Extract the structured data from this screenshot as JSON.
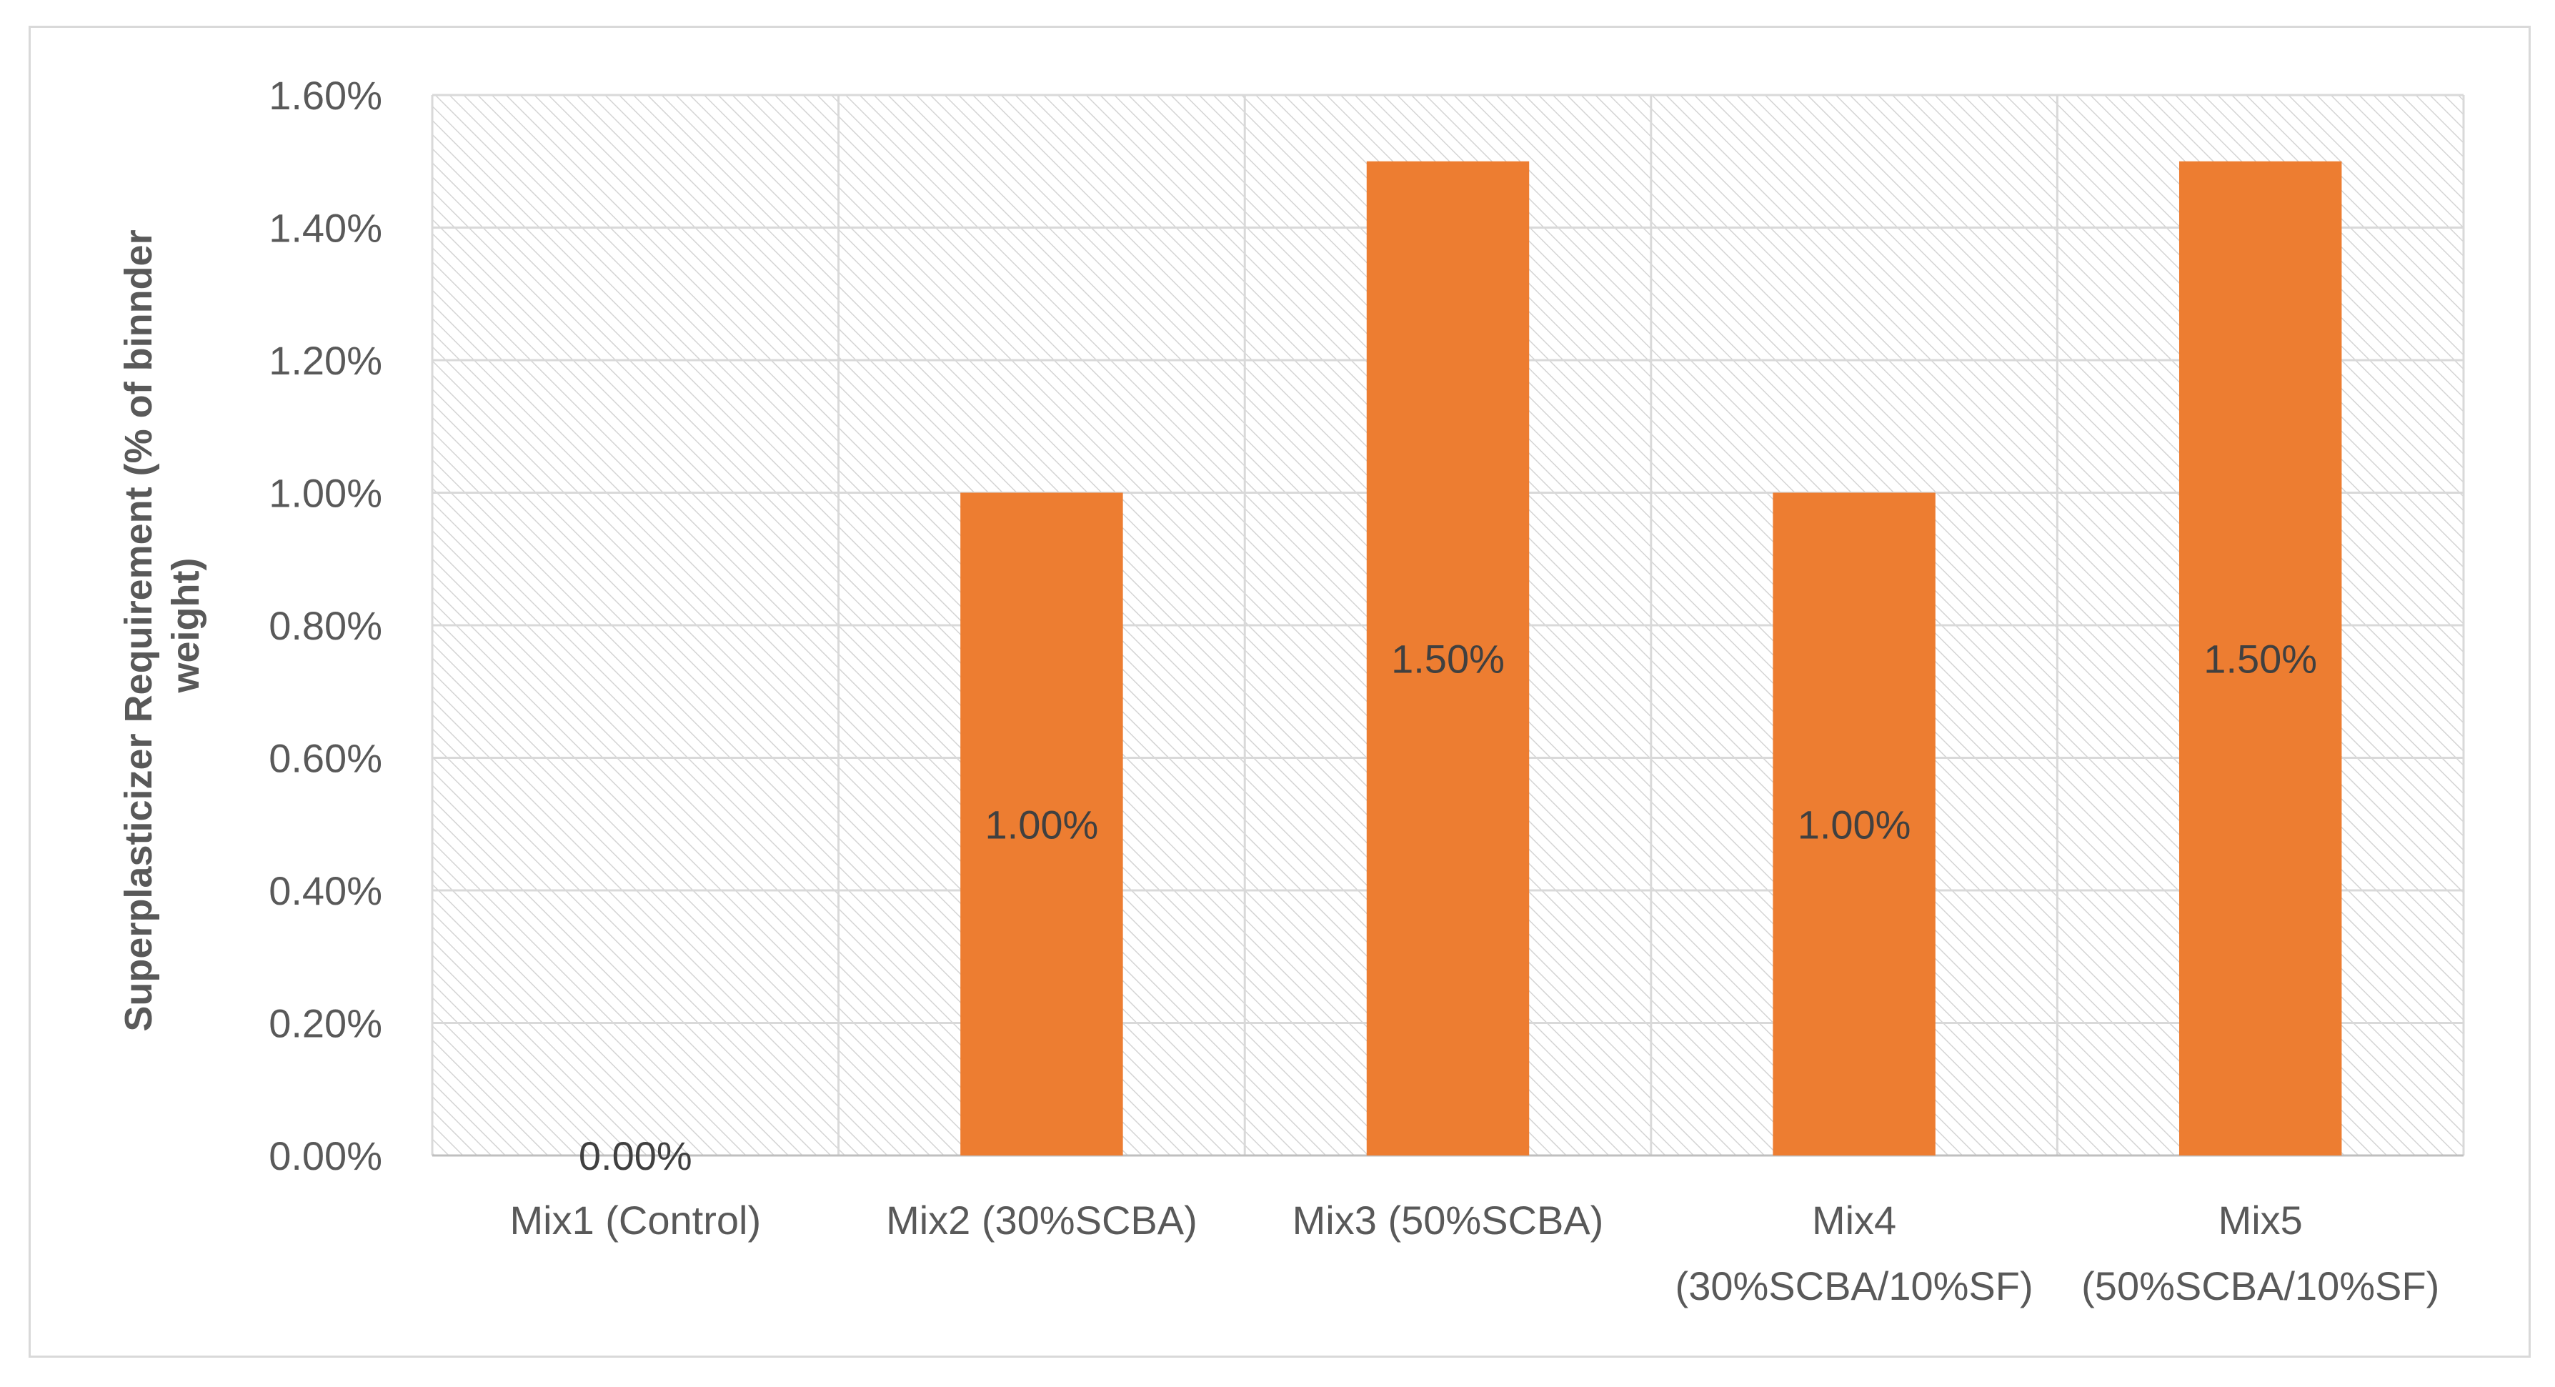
{
  "chart_data": {
    "type": "bar",
    "title": "",
    "xlabel": "",
    "ylabel": "Superplasticizer Requirement (% of binnder weight)",
    "ylabel_lines": [
      "Superplasticizer Requirement (% of binnder",
      "weight)"
    ],
    "categories": [
      [
        "Mix1 (Control)"
      ],
      [
        "Mix2 (30%SCBA)"
      ],
      [
        "Mix3 (50%SCBA)"
      ],
      [
        "Mix4",
        "(30%SCBA/10%SF)"
      ],
      [
        "Mix5",
        "(50%SCBA/10%SF)"
      ]
    ],
    "values": [
      0.0,
      1.0,
      1.5,
      1.0,
      1.5
    ],
    "data_labels": [
      "0.00%",
      "1.00%",
      "1.50%",
      "1.00%",
      "1.50%"
    ],
    "ylim": [
      0,
      1.6
    ],
    "yticks": [
      0.0,
      0.2,
      0.4,
      0.6,
      0.8,
      1.0,
      1.2,
      1.4,
      1.6
    ],
    "ytick_labels": [
      "0.00%",
      "0.20%",
      "0.40%",
      "0.60%",
      "0.80%",
      "1.00%",
      "1.20%",
      "1.40%",
      "1.60%"
    ],
    "grid": true,
    "legend": "none",
    "colors": {
      "bar": "#ed7d31",
      "grid": "#d9d9d9",
      "text": "#595959",
      "hatch": "#d0d0d0"
    }
  }
}
